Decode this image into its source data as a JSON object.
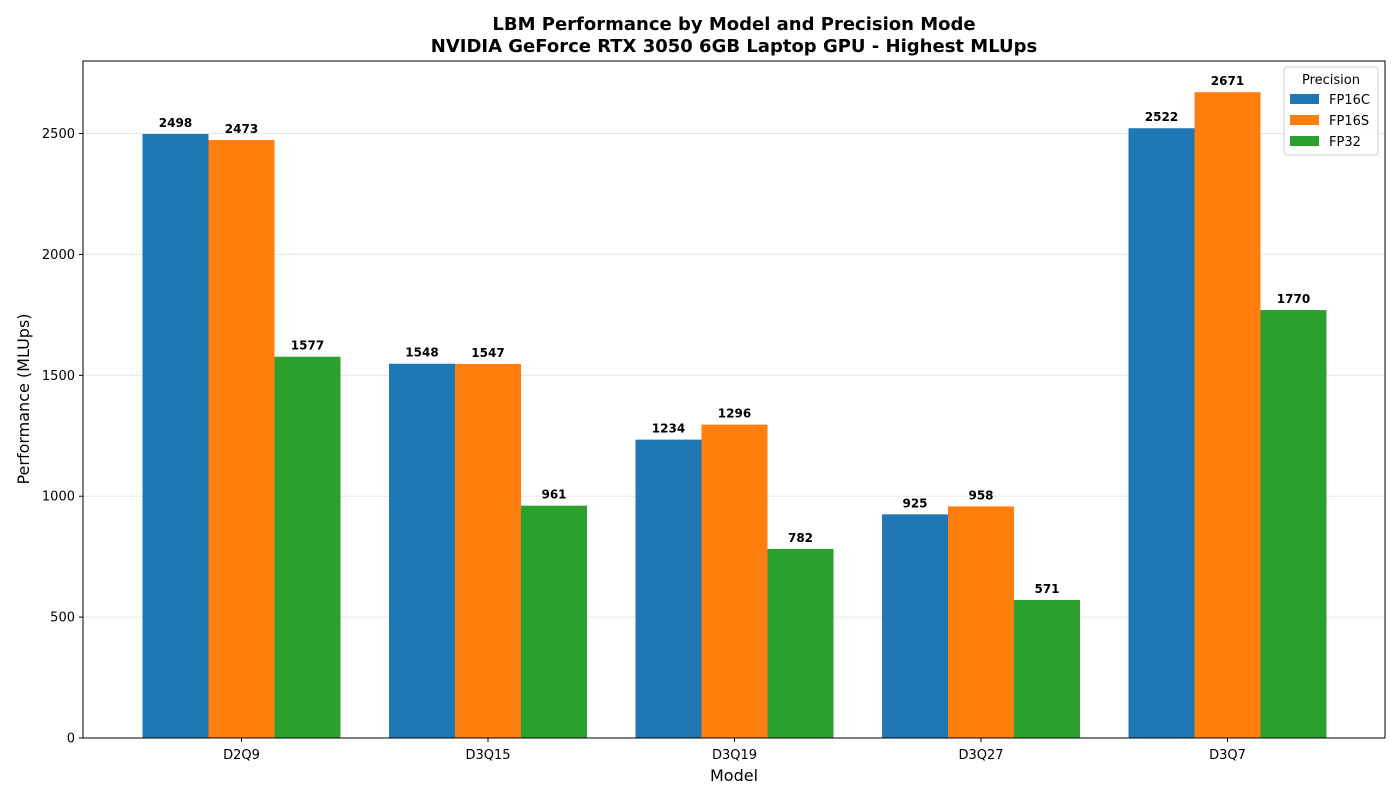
{
  "chart_data": {
    "type": "bar",
    "title": "LBM Performance by Model and Precision Mode",
    "subtitle": "NVIDIA GeForce RTX 3050 6GB Laptop GPU - Highest MLUps",
    "xlabel": "Model",
    "ylabel": "Performance (MLUps)",
    "ylim": [
      0,
      2800
    ],
    "yticks": [
      0,
      500,
      1000,
      1500,
      2000,
      2500
    ],
    "grid": "horizontal",
    "categories": [
      "D2Q9",
      "D3Q15",
      "D3Q19",
      "D3Q27",
      "D3Q7"
    ],
    "legend": {
      "title": "Precision",
      "placement": "top-right"
    },
    "series": [
      {
        "name": "FP16C",
        "color": "#1f77b4",
        "values": [
          2498,
          1548,
          1234,
          925,
          2522
        ]
      },
      {
        "name": "FP16S",
        "color": "#ff7f0e",
        "values": [
          2473,
          1547,
          1296,
          958,
          2671
        ]
      },
      {
        "name": "FP32",
        "color": "#2ca02c",
        "values": [
          1577,
          961,
          782,
          571,
          1770
        ]
      }
    ]
  }
}
